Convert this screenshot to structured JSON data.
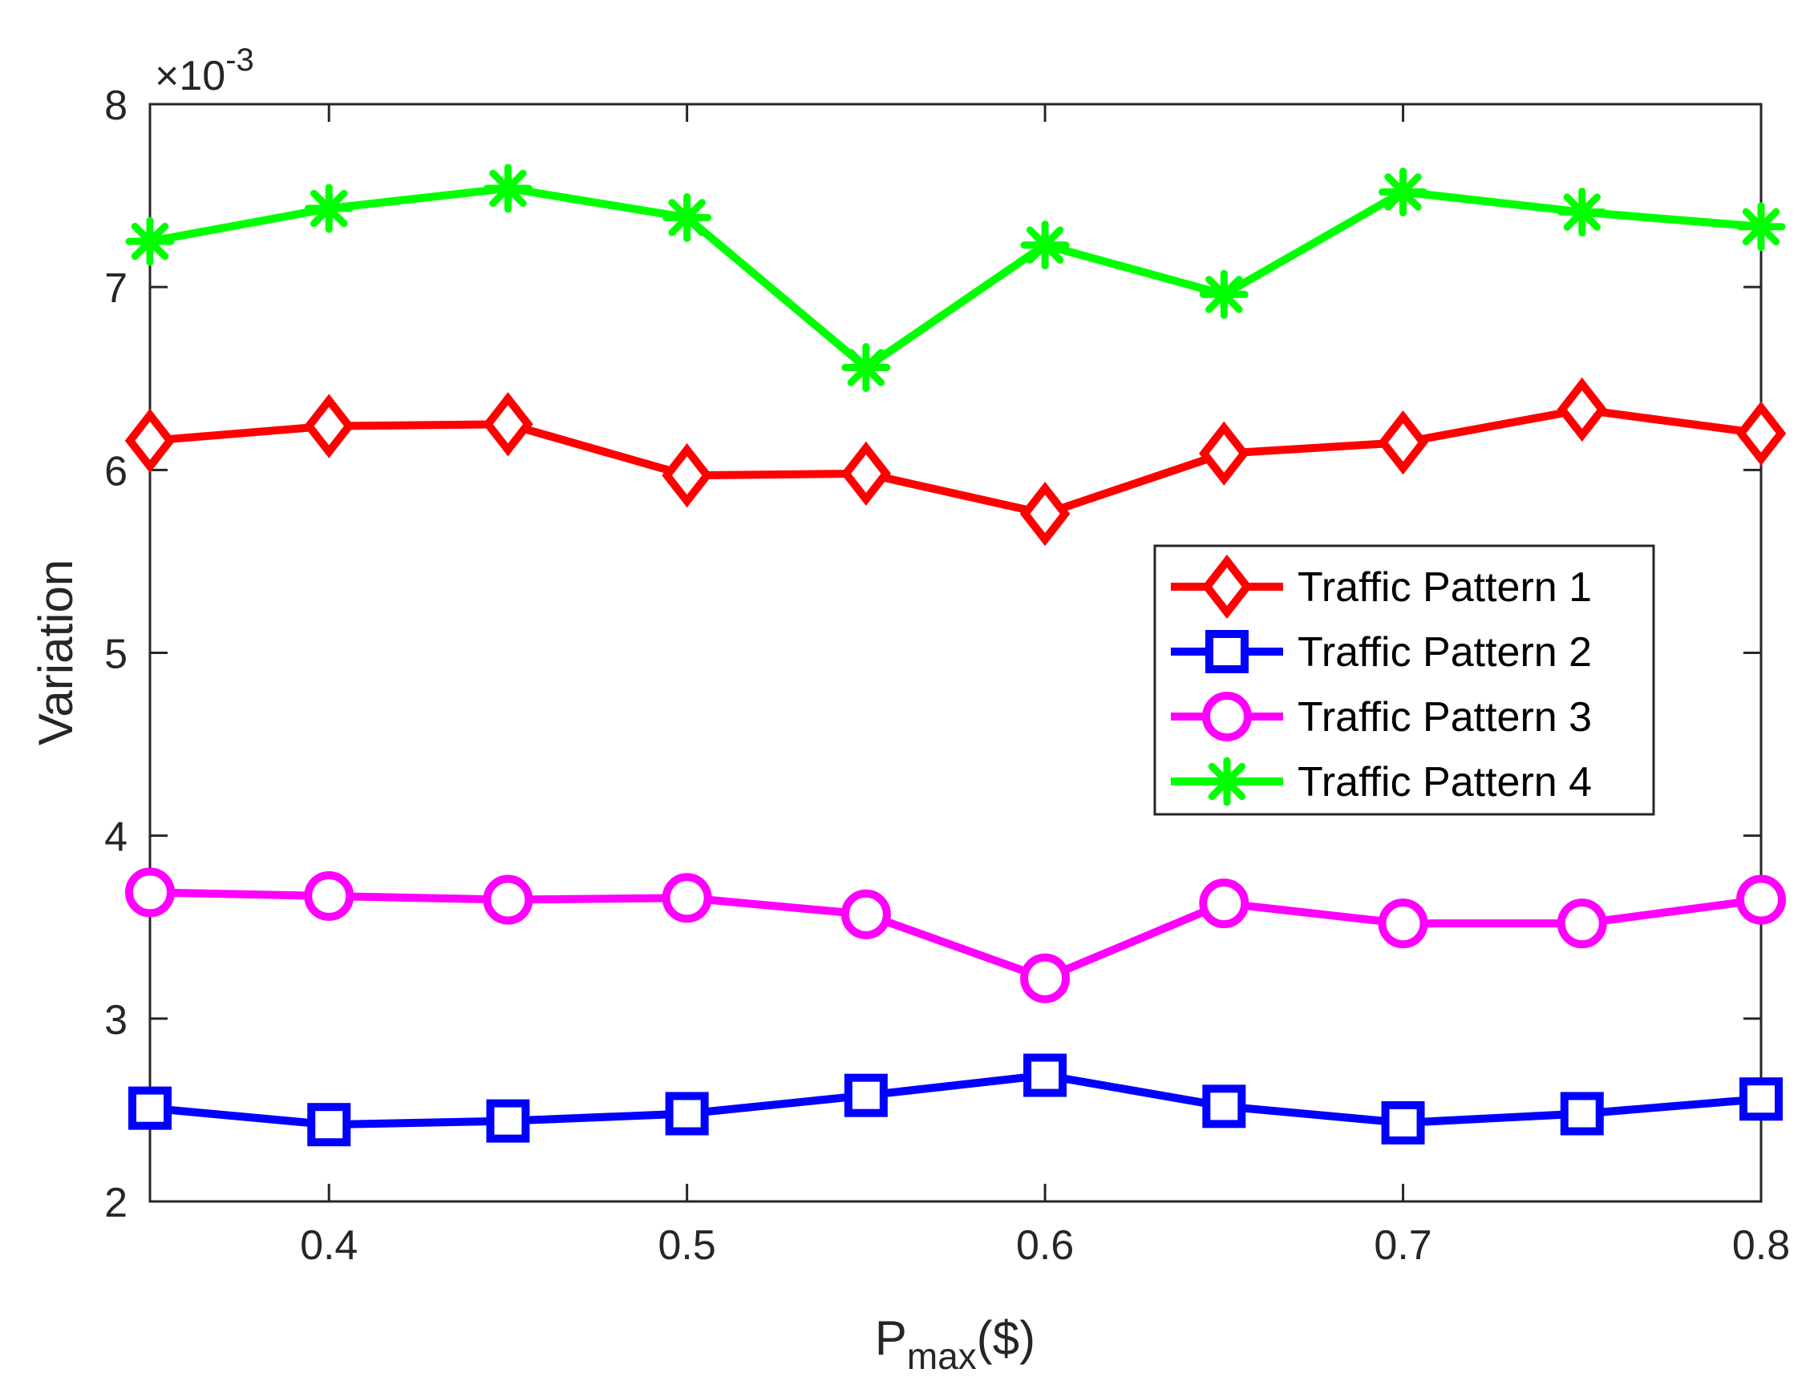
{
  "chart_data": {
    "type": "line",
    "xlabel": "P",
    "xlabel_sub": "max",
    "xlabel_suffix": "($)",
    "ylabel": "Variation",
    "yscale_base": "×10",
    "yscale_exp": "-3",
    "xlim": [
      0.35,
      0.8
    ],
    "ylim": [
      2,
      8
    ],
    "xticks": [
      0.4,
      0.5,
      0.6,
      0.7,
      0.8
    ],
    "xtick_labels": [
      "0.4",
      "0.5",
      "0.6",
      "0.7",
      "0.8"
    ],
    "yticks": [
      2,
      3,
      4,
      5,
      6,
      7,
      8
    ],
    "ytick_labels": [
      "2",
      "3",
      "4",
      "5",
      "6",
      "7",
      "8"
    ],
    "grid": false,
    "legend_position": "right-middle",
    "x": [
      0.35,
      0.4,
      0.45,
      0.5,
      0.55,
      0.6,
      0.65,
      0.7,
      0.75,
      0.8
    ],
    "series": [
      {
        "name": "Traffic Pattern 1",
        "color": "#ff0000",
        "marker": "diamond",
        "values": [
          6.16,
          6.24,
          6.25,
          5.97,
          5.98,
          5.76,
          6.09,
          6.15,
          6.33,
          6.2
        ]
      },
      {
        "name": "Traffic Pattern 2",
        "color": "#0000ff",
        "marker": "square",
        "values": [
          2.51,
          2.42,
          2.44,
          2.48,
          2.58,
          2.69,
          2.52,
          2.43,
          2.48,
          2.56
        ]
      },
      {
        "name": "Traffic Pattern 3",
        "color": "#ff00ff",
        "marker": "circle",
        "values": [
          3.69,
          3.67,
          3.65,
          3.66,
          3.57,
          3.22,
          3.63,
          3.52,
          3.52,
          3.65
        ]
      },
      {
        "name": "Traffic Pattern 4",
        "color": "#00ff00",
        "marker": "asterisk",
        "values": [
          7.25,
          7.43,
          7.54,
          7.38,
          6.56,
          7.23,
          6.96,
          7.52,
          7.41,
          7.33
        ]
      }
    ]
  }
}
